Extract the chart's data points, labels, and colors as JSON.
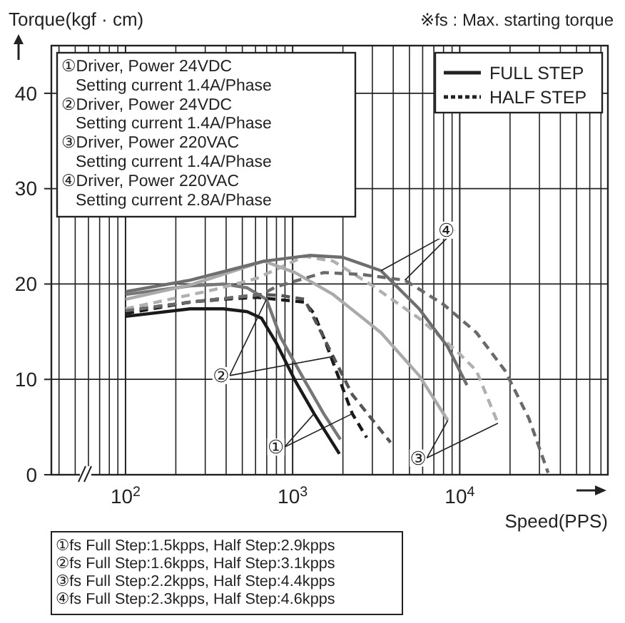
{
  "chart_data": {
    "type": "line",
    "xlabel": "Speed(PPS)",
    "ylabel": "Torque(kgf · cm)",
    "xlim": [
      36,
      77000
    ],
    "ylim": [
      0,
      45
    ],
    "log": "x",
    "grid": true,
    "legend": "top right",
    "xticks": [
      {
        "value": 40,
        "label": null
      },
      {
        "value": 50,
        "label": null
      },
      {
        "value": 60,
        "label": null
      },
      {
        "value": 70,
        "label": null
      },
      {
        "value": 80,
        "label": null
      },
      {
        "value": 90,
        "label": null
      },
      {
        "value": 100,
        "label": "10$^{2}$"
      },
      {
        "value": 200,
        "label": null
      },
      {
        "value": 300,
        "label": null
      },
      {
        "value": 400,
        "label": null
      },
      {
        "value": 500,
        "label": null
      },
      {
        "value": 600,
        "label": null
      },
      {
        "value": 700,
        "label": null
      },
      {
        "value": 800,
        "label": null
      },
      {
        "value": 900,
        "label": null
      },
      {
        "value": 1000,
        "label": "10$^{3}$"
      },
      {
        "value": 2000,
        "label": null
      },
      {
        "value": 3000,
        "label": null
      },
      {
        "value": 4000,
        "label": null
      },
      {
        "value": 5000,
        "label": null
      },
      {
        "value": 6000,
        "label": null
      },
      {
        "value": 7000,
        "label": null
      },
      {
        "value": 8000,
        "label": null
      },
      {
        "value": 9000,
        "label": null
      },
      {
        "value": 10000,
        "label": "10$^{4}$"
      },
      {
        "value": 20000,
        "label": null
      },
      {
        "value": 30000,
        "label": null
      },
      {
        "value": 40000,
        "label": null
      },
      {
        "value": 50000,
        "label": null
      },
      {
        "value": 60000,
        "label": null
      },
      {
        "value": 70000,
        "label": null
      }
    ],
    "yticks": [
      0,
      10,
      20,
      30,
      40
    ],
    "series": [
      {
        "name": "FULL STEP",
        "color": "#1a1a1a",
        "line_style": "solid",
        "x": [
          100,
          243,
          385,
          535,
          652,
          794,
          1033,
          1345,
          1905
        ],
        "values": [
          16.6,
          17.4,
          17.4,
          17.1,
          16.4,
          13.9,
          9.9,
          6.4,
          2.2
        ]
      },
      {
        "name": "HALF STEP",
        "color": "#1a1a1a",
        "line_style": "dashed",
        "x": [
          100,
          243,
          385,
          611,
          1178,
          1345,
          1534,
          1868,
          2275,
          2773
        ],
        "values": [
          16.9,
          18.1,
          18.4,
          18.6,
          18.1,
          16.9,
          14.4,
          10.4,
          6.4,
          3.9
        ]
      },
      {
        "color": "#777777",
        "line_style": "solid",
        "x": [
          100,
          243,
          385,
          535,
          697,
          848,
          1178,
          1534,
          1931
        ],
        "values": [
          18.9,
          19.8,
          20,
          19.6,
          18.4,
          14.4,
          9.9,
          6.4,
          3.7
        ]
      },
      {
        "color": "#555555",
        "line_style": "dashed",
        "x": [
          100,
          243,
          652,
          848,
          1178,
          1749,
          2275,
          2959,
          3853
        ],
        "values": [
          17.2,
          18.1,
          18.9,
          18.8,
          18.4,
          12.4,
          8.4,
          5.9,
          3.4
        ]
      },
      {
        "color": "#aaaaaa",
        "line_style": "solid",
        "x": [
          100,
          243,
          674,
          1033,
          1749,
          3378,
          5715,
          8484
        ],
        "values": [
          18.4,
          19.9,
          22.4,
          21.2,
          18.9,
          14.9,
          10.4,
          5.7
        ]
      },
      {
        "color": "#b0b0b0",
        "line_style": "dashed",
        "x": [
          100,
          338,
          611,
          1178,
          1749,
          2959,
          5715,
          9683,
          12590,
          16930
        ],
        "values": [
          17.4,
          19.4,
          20.6,
          22.9,
          22.4,
          19.9,
          16.4,
          12.9,
          10.9,
          5.4
        ]
      },
      {
        "color": "#6e6e6e",
        "line_style": "solid",
        "x": [
          100,
          243,
          674,
          1259,
          1995,
          3378,
          5715,
          8484,
          11040
        ],
        "values": [
          19.2,
          20.4,
          22.4,
          23,
          22.8,
          21.4,
          17.4,
          13.4,
          9.4
        ]
      },
      {
        "color": "#6a6a6a",
        "line_style": "dashed",
        "x": [
          100,
          243,
          652,
          794,
          1534,
          2594,
          4694,
          7943,
          12590,
          18690,
          25940,
          33800
        ],
        "values": [
          17.2,
          18.1,
          18.9,
          19.7,
          21.2,
          21,
          20.4,
          17.9,
          14.9,
          10.9,
          5.9,
          0.2
        ]
      }
    ],
    "annotations": [
      "※fs : Max. starting torque",
      "①Driver, Power 24VDC",
      "Setting current 1.4A/Phase",
      "②Driver, Power 24VDC",
      "Setting current 1.4A/Phase",
      "③Driver, Power 220VAC",
      "Setting current 1.4A/Phase",
      "④Driver, Power 220VAC",
      "Setting current 2.8A/Phase",
      "①fs Full Step:1.5kpps, Half Step:2.9kpps",
      "②fs Full Step:1.6kpps, Half Step:3.1kpps",
      "③fs Full Step:2.2kpps, Half Step:4.4kpps",
      "④fs Full Step:2.3kpps, Half Step:4.6kpps",
      {
        "text": "①",
        "x": 794,
        "y": 2.9
      },
      {
        "text": "②",
        "x": 373,
        "y": 10.4
      },
      {
        "text": "③",
        "x": 5640,
        "y": 1.75
      },
      {
        "text": "④",
        "x": 8318,
        "y": 25.65
      }
    ]
  }
}
